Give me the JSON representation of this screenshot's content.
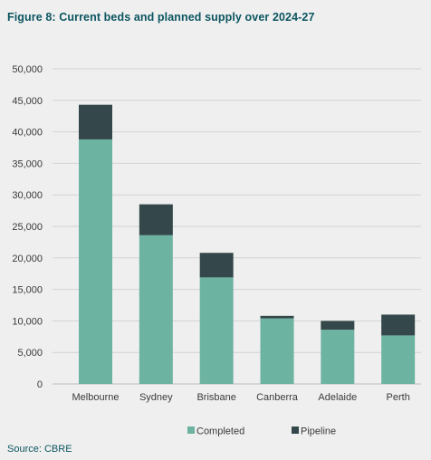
{
  "figure": {
    "title": "Figure 8: Current beds and planned supply over 2024-27",
    "source": "Source: CBRE"
  },
  "colors": {
    "completed": "#6db3a2",
    "pipeline": "#34474a",
    "gridline": "#d2d2d2",
    "axis_text": "#3a3a3a",
    "title_text": "#0b5560",
    "background": "#efefef"
  },
  "chart_data": {
    "type": "bar",
    "stacked": true,
    "categories": [
      "Melbourne",
      "Sydney",
      "Brisbane",
      "Canberra",
      "Adelaide",
      "Perth"
    ],
    "series": [
      {
        "name": "Completed",
        "values": [
          38800,
          23600,
          16900,
          10400,
          8600,
          7700
        ]
      },
      {
        "name": "Pipeline",
        "values": [
          5500,
          4900,
          3900,
          400,
          1400,
          3300
        ]
      }
    ],
    "yticks": [
      "0",
      "5,000",
      "10,000",
      "15,000",
      "20,000",
      "25,000",
      "30,000",
      "35,000",
      "40,000",
      "45,000",
      "50,000"
    ],
    "ylim": [
      0,
      50000
    ],
    "grid": true,
    "legend_position": "bottom"
  }
}
